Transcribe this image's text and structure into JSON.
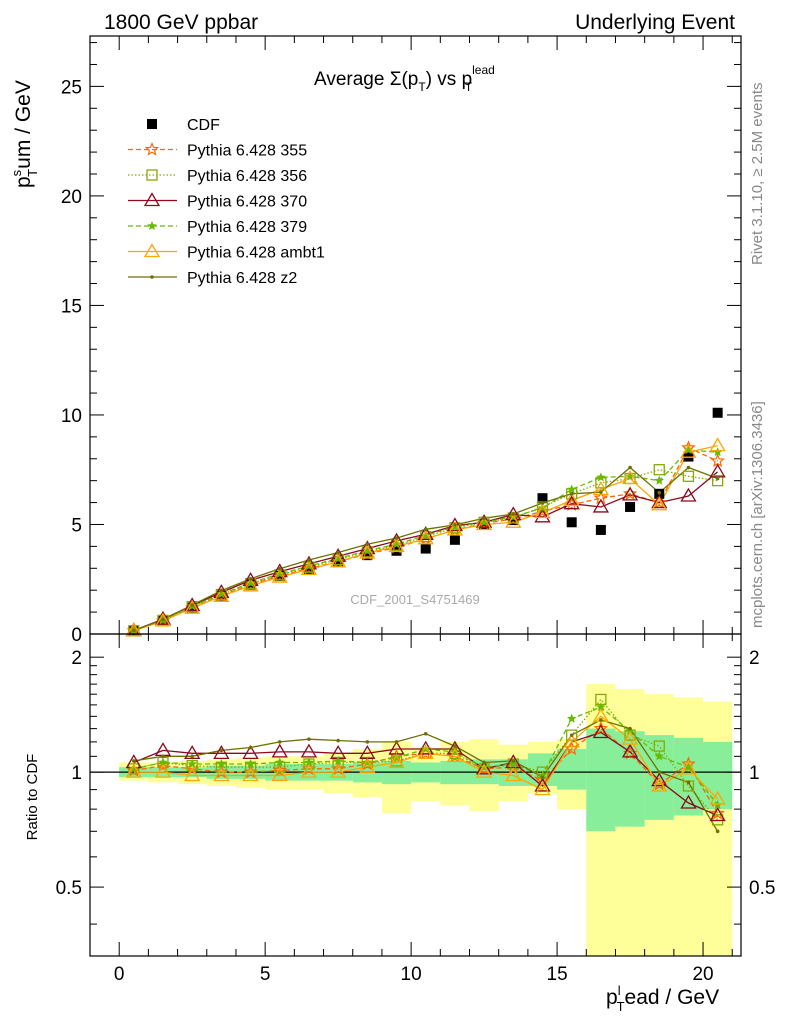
{
  "header": {
    "left": "1800 GeV ppbar",
    "right": "Underlying Event"
  },
  "side": {
    "rivet": "Rivet 3.1.10, ≥ 2.5M events",
    "mcplots": "mcplots.cern.ch [arXiv:1306.3436]"
  },
  "watermark": "CDF_2001_S4751469",
  "chart_data": [
    {
      "type": "scatter",
      "title": "Average Σ(p_T) vs p_T^lead",
      "title_parts": {
        "main": "Average Σ(p",
        "sub1": "T",
        "mid": ") vs p",
        "sup": "lead",
        "sub2": "T"
      },
      "ylabel": "p_T^sum / GeV",
      "ylabel_parts": {
        "p": "p",
        "sup": "s",
        "sub": "T",
        "rest": "um / GeV"
      },
      "xlabel": "p_T^lead / GeV",
      "xlim": [
        -1,
        21.3
      ],
      "ylim": [
        0,
        27.3
      ],
      "yticks": [
        0,
        5,
        10,
        15,
        20,
        25
      ],
      "ytick_labels": [
        "0",
        "5",
        "10",
        "15",
        "20",
        "25"
      ],
      "x": [
        0.5,
        1.5,
        2.5,
        3.5,
        4.5,
        5.5,
        6.5,
        7.5,
        8.5,
        9.5,
        10.5,
        11.5,
        12.5,
        13.5,
        14.5,
        15.5,
        16.5,
        17.5,
        18.5,
        19.5,
        20.5
      ],
      "legend_position": "top-left",
      "series": [
        {
          "name": "CDF",
          "color": "#000000",
          "marker": "square-filled",
          "line": "none",
          "values": [
            0.15,
            0.6,
            1.2,
            1.75,
            2.25,
            2.65,
            2.95,
            3.3,
            3.6,
            3.8,
            3.9,
            4.3,
            5.0,
            5.2,
            6.2,
            5.1,
            4.75,
            5.8,
            6.4,
            8.1,
            10.1
          ]
        },
        {
          "name": "Pythia 6.428 355",
          "color": "#ff6600",
          "marker": "star-open",
          "line": "dashed",
          "values": [
            0.15,
            0.6,
            1.2,
            1.75,
            2.25,
            2.65,
            3.0,
            3.3,
            3.65,
            3.95,
            4.35,
            4.75,
            5.05,
            5.25,
            5.6,
            5.9,
            6.2,
            6.4,
            6.0,
            8.5,
            7.9
          ]
        },
        {
          "name": "Pythia 6.428 356",
          "color": "#88aa00",
          "marker": "square-open",
          "line": "dotted",
          "values": [
            0.15,
            0.62,
            1.25,
            1.8,
            2.3,
            2.7,
            3.05,
            3.4,
            3.75,
            4.05,
            4.45,
            4.85,
            5.1,
            5.3,
            5.8,
            6.4,
            6.9,
            7.1,
            7.5,
            7.2,
            7.0
          ]
        },
        {
          "name": "Pythia 6.428 370",
          "color": "#8b0a1e",
          "marker": "triangle-open",
          "line": "solid",
          "values": [
            0.16,
            0.68,
            1.3,
            1.9,
            2.45,
            2.85,
            3.2,
            3.55,
            3.9,
            4.25,
            4.55,
            4.95,
            5.1,
            5.45,
            5.35,
            5.95,
            5.8,
            6.35,
            6.0,
            6.3,
            7.4
          ]
        },
        {
          "name": "Pythia 6.428 379",
          "color": "#66bb00",
          "marker": "star-filled",
          "line": "dashed",
          "values": [
            0.15,
            0.63,
            1.27,
            1.83,
            2.33,
            2.75,
            3.1,
            3.45,
            3.8,
            4.1,
            4.5,
            4.9,
            5.1,
            5.35,
            5.75,
            6.6,
            7.15,
            7.2,
            7.0,
            8.4,
            8.3
          ]
        },
        {
          "name": "Pythia 6.428 ambt1",
          "color": "#ffa500",
          "marker": "triangle-open",
          "line": "solid",
          "values": [
            0.15,
            0.6,
            1.18,
            1.72,
            2.2,
            2.6,
            2.95,
            3.3,
            3.7,
            4.0,
            4.35,
            4.75,
            5.0,
            5.1,
            5.55,
            6.1,
            6.6,
            7.1,
            5.9,
            8.3,
            8.6
          ]
        },
        {
          "name": "Pythia 6.428 z2",
          "color": "#707000",
          "marker": "dot",
          "line": "solid",
          "values": [
            0.16,
            0.66,
            1.32,
            1.98,
            2.52,
            2.98,
            3.38,
            3.72,
            4.1,
            4.38,
            4.78,
            4.98,
            5.28,
            5.48,
            5.98,
            6.4,
            6.48,
            7.6,
            6.45,
            7.6,
            7.1
          ]
        }
      ]
    },
    {
      "type": "line",
      "ylabel": "Ratio to CDF",
      "xlabel": "p_T^lead / GeV",
      "xlabel_parts": {
        "p": "p",
        "sup": "l",
        "sub": "T",
        "rest": "ead / GeV"
      },
      "xlim": [
        -1,
        21.3
      ],
      "ylim": [
        0.33,
        2.3
      ],
      "xticks": [
        0,
        5,
        10,
        15,
        20
      ],
      "xtick_labels": [
        "0",
        "5",
        "10",
        "15",
        "20"
      ],
      "yticks": [
        0.5,
        1,
        2
      ],
      "ytick_labels": [
        "0.5",
        "1",
        "2"
      ],
      "reference_line": 1,
      "band_edges": [
        0,
        1,
        2,
        3,
        4,
        5,
        6,
        7,
        8,
        9,
        10,
        11,
        12,
        13,
        14,
        15,
        16,
        17,
        18,
        19,
        20,
        21
      ],
      "band_inner": {
        "color": "#88ee99",
        "lo": [
          0.97,
          0.97,
          0.97,
          0.96,
          0.96,
          0.95,
          0.95,
          0.95,
          0.94,
          0.93,
          0.94,
          0.93,
          0.93,
          0.92,
          0.92,
          0.9,
          0.7,
          0.72,
          0.75,
          0.77,
          0.8
        ],
        "hi": [
          1.03,
          1.03,
          1.03,
          1.04,
          1.04,
          1.05,
          1.05,
          1.05,
          1.06,
          1.07,
          1.06,
          1.07,
          1.08,
          1.08,
          1.12,
          1.15,
          1.3,
          1.28,
          1.25,
          1.23,
          1.2
        ]
      },
      "band_outer": {
        "color": "#ffff99",
        "lo": [
          0.95,
          0.94,
          0.93,
          0.92,
          0.91,
          0.9,
          0.9,
          0.88,
          0.86,
          0.78,
          0.84,
          0.82,
          0.79,
          0.84,
          0.88,
          0.8,
          0.3,
          0.3,
          0.3,
          0.3,
          0.32
        ],
        "hi": [
          1.06,
          1.06,
          1.07,
          1.08,
          1.09,
          1.1,
          1.1,
          1.12,
          1.15,
          1.2,
          1.16,
          1.2,
          1.22,
          1.18,
          1.2,
          1.22,
          1.7,
          1.65,
          1.6,
          1.57,
          1.53
        ]
      },
      "x": [
        0.5,
        1.5,
        2.5,
        3.5,
        4.5,
        5.5,
        6.5,
        7.5,
        8.5,
        9.5,
        10.5,
        11.5,
        12.5,
        13.5,
        14.5,
        15.5,
        16.5,
        17.5,
        18.5,
        19.5,
        20.5
      ],
      "series": [
        {
          "name": "Pythia 6.428 355",
          "color": "#ff6600",
          "marker": "star-open",
          "line": "dashed",
          "values": [
            1.01,
            1.04,
            1.02,
            1.0,
            1.0,
            1.01,
            1.02,
            1.02,
            1.05,
            1.1,
            1.12,
            1.1,
            1.02,
            1.03,
            0.95,
            1.15,
            1.3,
            1.12,
            0.93,
            1.05,
            0.78
          ]
        },
        {
          "name": "Pythia 6.428 356",
          "color": "#88aa00",
          "marker": "square-open",
          "line": "dotted",
          "values": [
            1.02,
            1.06,
            1.04,
            1.03,
            1.03,
            1.03,
            1.05,
            1.06,
            1.06,
            1.07,
            1.12,
            1.12,
            1.02,
            1.05,
            1.0,
            1.25,
            1.55,
            1.25,
            1.17,
            0.92,
            0.75
          ]
        },
        {
          "name": "Pythia 6.428 370",
          "color": "#8b0a1e",
          "marker": "triangle-open",
          "line": "solid",
          "values": [
            1.06,
            1.14,
            1.12,
            1.12,
            1.12,
            1.13,
            1.13,
            1.12,
            1.12,
            1.15,
            1.15,
            1.15,
            1.02,
            1.06,
            0.92,
            1.2,
            1.27,
            1.13,
            0.95,
            0.83,
            0.77
          ]
        },
        {
          "name": "Pythia 6.428 379",
          "color": "#66bb00",
          "marker": "star-filled",
          "line": "dashed",
          "values": [
            1.02,
            1.06,
            1.05,
            1.05,
            1.05,
            1.06,
            1.06,
            1.07,
            1.06,
            1.09,
            1.15,
            1.13,
            1.03,
            1.05,
            0.98,
            1.38,
            1.48,
            1.28,
            1.1,
            1.03,
            0.82
          ]
        },
        {
          "name": "Pythia 6.428 ambt1",
          "color": "#ffa500",
          "marker": "triangle-open",
          "line": "solid",
          "values": [
            1.0,
            1.0,
            0.98,
            0.98,
            0.98,
            0.98,
            1.0,
            1.0,
            1.03,
            1.06,
            1.12,
            1.1,
            1.0,
            0.98,
            0.9,
            1.2,
            1.4,
            1.22,
            0.92,
            1.02,
            0.85
          ]
        },
        {
          "name": "Pythia 6.428 z2",
          "color": "#707000",
          "marker": "dot",
          "line": "solid",
          "values": [
            1.07,
            1.1,
            1.1,
            1.14,
            1.16,
            1.2,
            1.22,
            1.21,
            1.2,
            1.2,
            1.26,
            1.17,
            1.06,
            1.07,
            0.97,
            1.25,
            1.37,
            1.3,
            1.0,
            0.94,
            0.7
          ]
        }
      ]
    }
  ]
}
